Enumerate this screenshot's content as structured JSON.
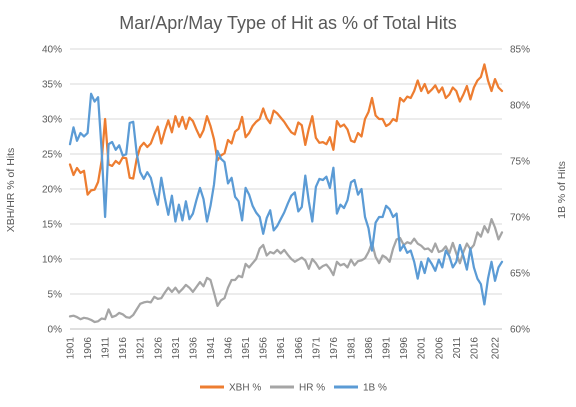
{
  "chart_data": {
    "type": "line",
    "title": "Mar/Apr/May Type of Hit as % of Total Hits",
    "ylabel": "XBH/HR % of Hits",
    "y2label": "1B % of Hits",
    "xlim": [
      1901,
      2024
    ],
    "ylim": [
      0,
      40
    ],
    "y2lim": [
      60,
      85
    ],
    "yticks": [
      "0%",
      "5%",
      "10%",
      "15%",
      "20%",
      "25%",
      "30%",
      "35%",
      "40%"
    ],
    "y2ticks": [
      "60%",
      "65%",
      "70%",
      "75%",
      "80%",
      "85%"
    ],
    "xticks": [
      1901,
      1906,
      1911,
      1916,
      1921,
      1926,
      1931,
      1936,
      1941,
      1946,
      1951,
      1956,
      1961,
      1966,
      1971,
      1976,
      1981,
      1986,
      1991,
      1996,
      2001,
      2006,
      2011,
      2016,
      2022
    ],
    "grid": true,
    "legend": "bottom",
    "x": [
      1901,
      1902,
      1903,
      1904,
      1905,
      1906,
      1907,
      1908,
      1909,
      1910,
      1911,
      1912,
      1913,
      1914,
      1915,
      1916,
      1917,
      1918,
      1919,
      1920,
      1921,
      1922,
      1923,
      1924,
      1925,
      1926,
      1927,
      1928,
      1929,
      1930,
      1931,
      1932,
      1933,
      1934,
      1935,
      1936,
      1937,
      1938,
      1939,
      1940,
      1941,
      1942,
      1943,
      1944,
      1945,
      1946,
      1947,
      1948,
      1949,
      1950,
      1951,
      1952,
      1953,
      1954,
      1955,
      1956,
      1957,
      1958,
      1959,
      1960,
      1961,
      1962,
      1963,
      1964,
      1965,
      1966,
      1967,
      1968,
      1969,
      1970,
      1971,
      1972,
      1973,
      1974,
      1975,
      1976,
      1977,
      1978,
      1979,
      1980,
      1981,
      1982,
      1983,
      1984,
      1985,
      1986,
      1987,
      1988,
      1989,
      1990,
      1991,
      1992,
      1993,
      1994,
      1995,
      1996,
      1997,
      1998,
      1999,
      2000,
      2001,
      2002,
      2003,
      2004,
      2005,
      2006,
      2007,
      2008,
      2009,
      2010,
      2011,
      2012,
      2013,
      2014,
      2015,
      2016,
      2017,
      2018,
      2019,
      2020,
      2021,
      2022,
      2023,
      2024
    ],
    "series": [
      {
        "name": "XBH %",
        "color": "#ED7D31",
        "axis": "left",
        "values": [
          23.5,
          22.0,
          23.0,
          22.3,
          22.6,
          19.2,
          19.8,
          19.9,
          21.0,
          24.0,
          30.0,
          23.5,
          23.3,
          24.0,
          23.6,
          24.5,
          24.4,
          21.6,
          21.5,
          24.3,
          26.0,
          26.6,
          26.0,
          26.5,
          27.8,
          28.9,
          26.5,
          28.3,
          29.8,
          28.1,
          30.4,
          28.9,
          30.3,
          28.6,
          30.2,
          29.7,
          28.5,
          27.4,
          28.4,
          30.4,
          29.0,
          27.1,
          24.1,
          24.8,
          25.1,
          27.0,
          26.5,
          28.2,
          28.6,
          30.3,
          27.4,
          28.0,
          29.0,
          29.6,
          30.0,
          31.5,
          30.1,
          29.4,
          31.2,
          30.8,
          30.2,
          29.6,
          28.8,
          28.1,
          27.8,
          29.5,
          29.1,
          26.3,
          28.6,
          30.4,
          27.3,
          26.6,
          26.7,
          26.4,
          27.4,
          25.6,
          29.7,
          28.9,
          29.2,
          28.5,
          26.9,
          26.7,
          28.0,
          27.5,
          30.0,
          31.0,
          33.0,
          30.5,
          30.0,
          30.0,
          29.0,
          29.3,
          30.0,
          29.7,
          33.0,
          32.5,
          33.2,
          33.0,
          34.0,
          35.5,
          34.0,
          35.0,
          33.7,
          34.2,
          34.8,
          33.8,
          34.5,
          33.0,
          33.5,
          34.5,
          34.0,
          32.5,
          33.5,
          34.7,
          32.8,
          34.5,
          35.5,
          36.0,
          37.8,
          35.5,
          34.0,
          35.7,
          34.5,
          34.0
        ]
      },
      {
        "name": "HR %",
        "color": "#A5A5A5",
        "axis": "left",
        "values": [
          1.8,
          1.9,
          1.7,
          1.4,
          1.6,
          1.5,
          1.3,
          1.0,
          1.1,
          1.5,
          1.4,
          2.8,
          1.7,
          1.9,
          2.3,
          2.1,
          1.7,
          1.6,
          2.0,
          2.8,
          3.6,
          3.8,
          3.9,
          3.8,
          4.6,
          4.3,
          4.4,
          5.2,
          5.9,
          5.3,
          5.9,
          5.2,
          5.7,
          6.3,
          5.9,
          5.3,
          6.0,
          6.7,
          6.1,
          7.3,
          7.0,
          5.2,
          3.3,
          4.1,
          4.4,
          5.9,
          7.0,
          7.0,
          7.6,
          7.4,
          9.3,
          8.8,
          9.4,
          10.0,
          11.5,
          12.0,
          10.5,
          11.0,
          10.8,
          11.3,
          10.8,
          11.3,
          10.6,
          10.0,
          9.6,
          9.9,
          10.2,
          9.8,
          8.6,
          10.0,
          9.4,
          8.6,
          9.0,
          9.2,
          8.6,
          7.7,
          9.6,
          9.1,
          9.3,
          8.8,
          9.9,
          9.1,
          9.7,
          9.8,
          10.1,
          11.0,
          12.3,
          10.3,
          9.4,
          10.5,
          10.2,
          9.6,
          11.5,
          12.8,
          13.0,
          12.0,
          12.4,
          12.2,
          12.9,
          12.2,
          11.9,
          11.4,
          11.5,
          11.0,
          12.2,
          11.0,
          11.2,
          11.8,
          10.8,
          12.3,
          10.8,
          9.4,
          11.0,
          12.2,
          11.4,
          12.0,
          13.8,
          13.2,
          14.7,
          13.8,
          15.7,
          14.5,
          12.8,
          13.8
        ]
      },
      {
        "name": "1B %",
        "color": "#5B9BD5",
        "axis": "right",
        "values": [
          76.5,
          78.0,
          76.8,
          77.5,
          77.2,
          77.5,
          81.0,
          80.3,
          80.7,
          76.0,
          70.0,
          76.5,
          76.7,
          76.0,
          76.4,
          75.5,
          75.6,
          78.4,
          78.5,
          75.7,
          74.0,
          73.4,
          74.0,
          73.5,
          72.2,
          71.1,
          73.5,
          71.7,
          70.2,
          71.9,
          69.6,
          71.1,
          69.7,
          71.4,
          69.8,
          70.3,
          71.5,
          72.6,
          71.6,
          69.6,
          71.0,
          72.9,
          75.9,
          75.2,
          74.9,
          73.0,
          73.5,
          71.8,
          71.4,
          69.7,
          72.6,
          72.0,
          71.0,
          70.4,
          70.0,
          68.5,
          69.9,
          70.6,
          68.8,
          69.2,
          69.8,
          70.4,
          71.2,
          71.9,
          72.2,
          70.5,
          70.9,
          73.7,
          71.4,
          69.6,
          72.7,
          73.4,
          73.3,
          73.6,
          72.6,
          74.4,
          70.3,
          71.1,
          70.8,
          71.5,
          73.1,
          73.3,
          72.0,
          72.5,
          70.0,
          69.0,
          67.0,
          69.5,
          70.0,
          70.0,
          71.0,
          70.7,
          70.0,
          70.3,
          67.0,
          67.5,
          66.8,
          67.0,
          66.0,
          64.5,
          66.0,
          65.0,
          66.3,
          65.8,
          65.2,
          66.2,
          65.5,
          67.0,
          66.5,
          65.5,
          66.0,
          67.5,
          66.5,
          65.3,
          67.2,
          65.5,
          64.5,
          64.0,
          62.2,
          64.5,
          66.0,
          64.3,
          65.5,
          66.0
        ]
      }
    ]
  }
}
